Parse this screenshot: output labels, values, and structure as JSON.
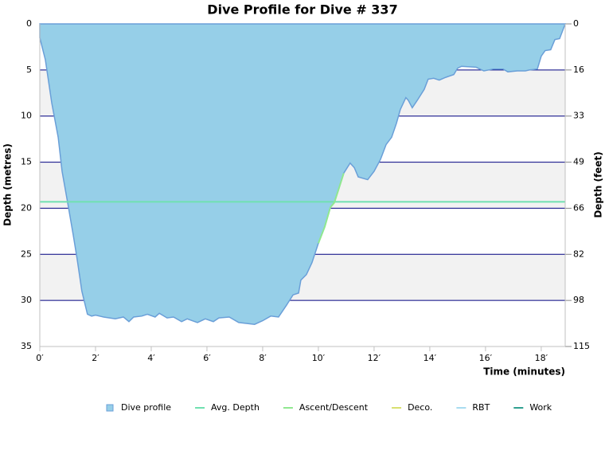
{
  "chart_data": {
    "type": "area",
    "title": "Dive Profile for Dive # 337",
    "x_label": "Time (minutes)",
    "y_label": "Depth (metres)",
    "y2_label": "Depth (feet)",
    "xlim": [
      0,
      18.86
    ],
    "xticks": [
      {
        "value": 0,
        "label": "0′"
      },
      {
        "value": 2,
        "label": "2′"
      },
      {
        "value": 4,
        "label": "4′"
      },
      {
        "value": 6,
        "label": "6′"
      },
      {
        "value": 8,
        "label": "8′"
      },
      {
        "value": 10,
        "label": "10′"
      },
      {
        "value": 12,
        "label": "12′"
      },
      {
        "value": 14,
        "label": "14′"
      },
      {
        "value": 16,
        "label": "16′"
      },
      {
        "value": 18,
        "label": "18′"
      }
    ],
    "ylim": [
      0,
      35
    ],
    "yticks": [
      0,
      5,
      10,
      15,
      20,
      25,
      30,
      35
    ],
    "y2lim": [
      0,
      114.83
    ],
    "y2ticks": [
      0,
      {
        "value": 16.4,
        "label": "16"
      },
      {
        "value": 32.81,
        "label": "33"
      },
      {
        "value": 49.21,
        "label": "49"
      },
      {
        "value": 65.62,
        "label": "66"
      },
      {
        "value": 82.02,
        "label": "82"
      },
      {
        "value": 98.43,
        "label": "98"
      },
      {
        "value": 114.83,
        "label": "115"
      }
    ],
    "inverted_y": true,
    "grid": true,
    "legend": "bottom",
    "series": [
      {
        "name": "Dive profile",
        "color": "#96cfe8",
        "x": [
          0,
          0.2,
          0.43,
          0.66,
          0.8,
          1.0,
          1.2,
          1.34,
          1.51,
          1.71,
          1.86,
          2.0,
          2.29,
          2.71,
          3.0,
          3.2,
          3.37,
          3.66,
          3.86,
          4.14,
          4.29,
          4.57,
          4.8,
          5.09,
          5.29,
          5.66,
          5.94,
          6.23,
          6.43,
          6.8,
          7.14,
          7.71,
          8.0,
          8.29,
          8.57,
          8.86,
          9.09,
          9.29,
          9.37,
          9.57,
          9.77,
          10.0,
          10.23,
          10.43,
          10.57,
          10.71,
          10.91,
          11.14,
          11.29,
          11.43,
          11.77,
          12.0,
          12.23,
          12.43,
          12.63,
          12.8,
          12.94,
          13.14,
          13.23,
          13.37,
          13.57,
          13.8,
          13.94,
          14.14,
          14.34,
          14.57,
          14.86,
          15.0,
          15.14,
          15.66,
          15.94,
          16.29,
          16.63,
          16.8,
          17.14,
          17.43,
          17.57,
          17.86,
          18.0,
          18.14,
          18.34,
          18.49,
          18.66,
          18.86
        ],
        "values": [
          1.5,
          3.9,
          8.6,
          12.3,
          16.0,
          19.4,
          22.9,
          25.5,
          29.0,
          31.5,
          31.7,
          31.6,
          31.8,
          32.0,
          31.8,
          32.3,
          31.8,
          31.7,
          31.5,
          31.8,
          31.4,
          31.9,
          31.8,
          32.3,
          32.0,
          32.4,
          32.0,
          32.3,
          31.9,
          31.8,
          32.4,
          32.6,
          32.2,
          31.7,
          31.8,
          30.5,
          29.4,
          29.2,
          27.8,
          27.2,
          25.9,
          23.8,
          22.0,
          19.9,
          19.4,
          18.1,
          16.2,
          15.1,
          15.6,
          16.6,
          16.9,
          16.0,
          14.7,
          13.1,
          12.3,
          10.8,
          9.3,
          8.0,
          8.3,
          9.1,
          8.2,
          7.1,
          6.0,
          5.9,
          6.1,
          5.8,
          5.5,
          4.8,
          4.6,
          4.7,
          5.1,
          4.9,
          4.9,
          5.2,
          5.1,
          5.1,
          5.0,
          4.9,
          3.5,
          2.9,
          2.8,
          1.7,
          1.6,
          0
        ]
      },
      {
        "name": "Avg. Depth",
        "color": "#70e0b0",
        "value": 19.3
      },
      {
        "name": "Ascent/Descent",
        "color": "#90e890",
        "x": [
          10.0,
          10.23,
          10.43,
          10.57,
          10.71,
          10.91
        ],
        "values": [
          23.8,
          22.0,
          19.9,
          19.4,
          18.1,
          16.2
        ]
      },
      {
        "name": "Deco.",
        "color": "#d8e070"
      },
      {
        "name": "RBT",
        "color": "#a8dcf0"
      },
      {
        "name": "Work",
        "color": "#30a090"
      }
    ]
  }
}
